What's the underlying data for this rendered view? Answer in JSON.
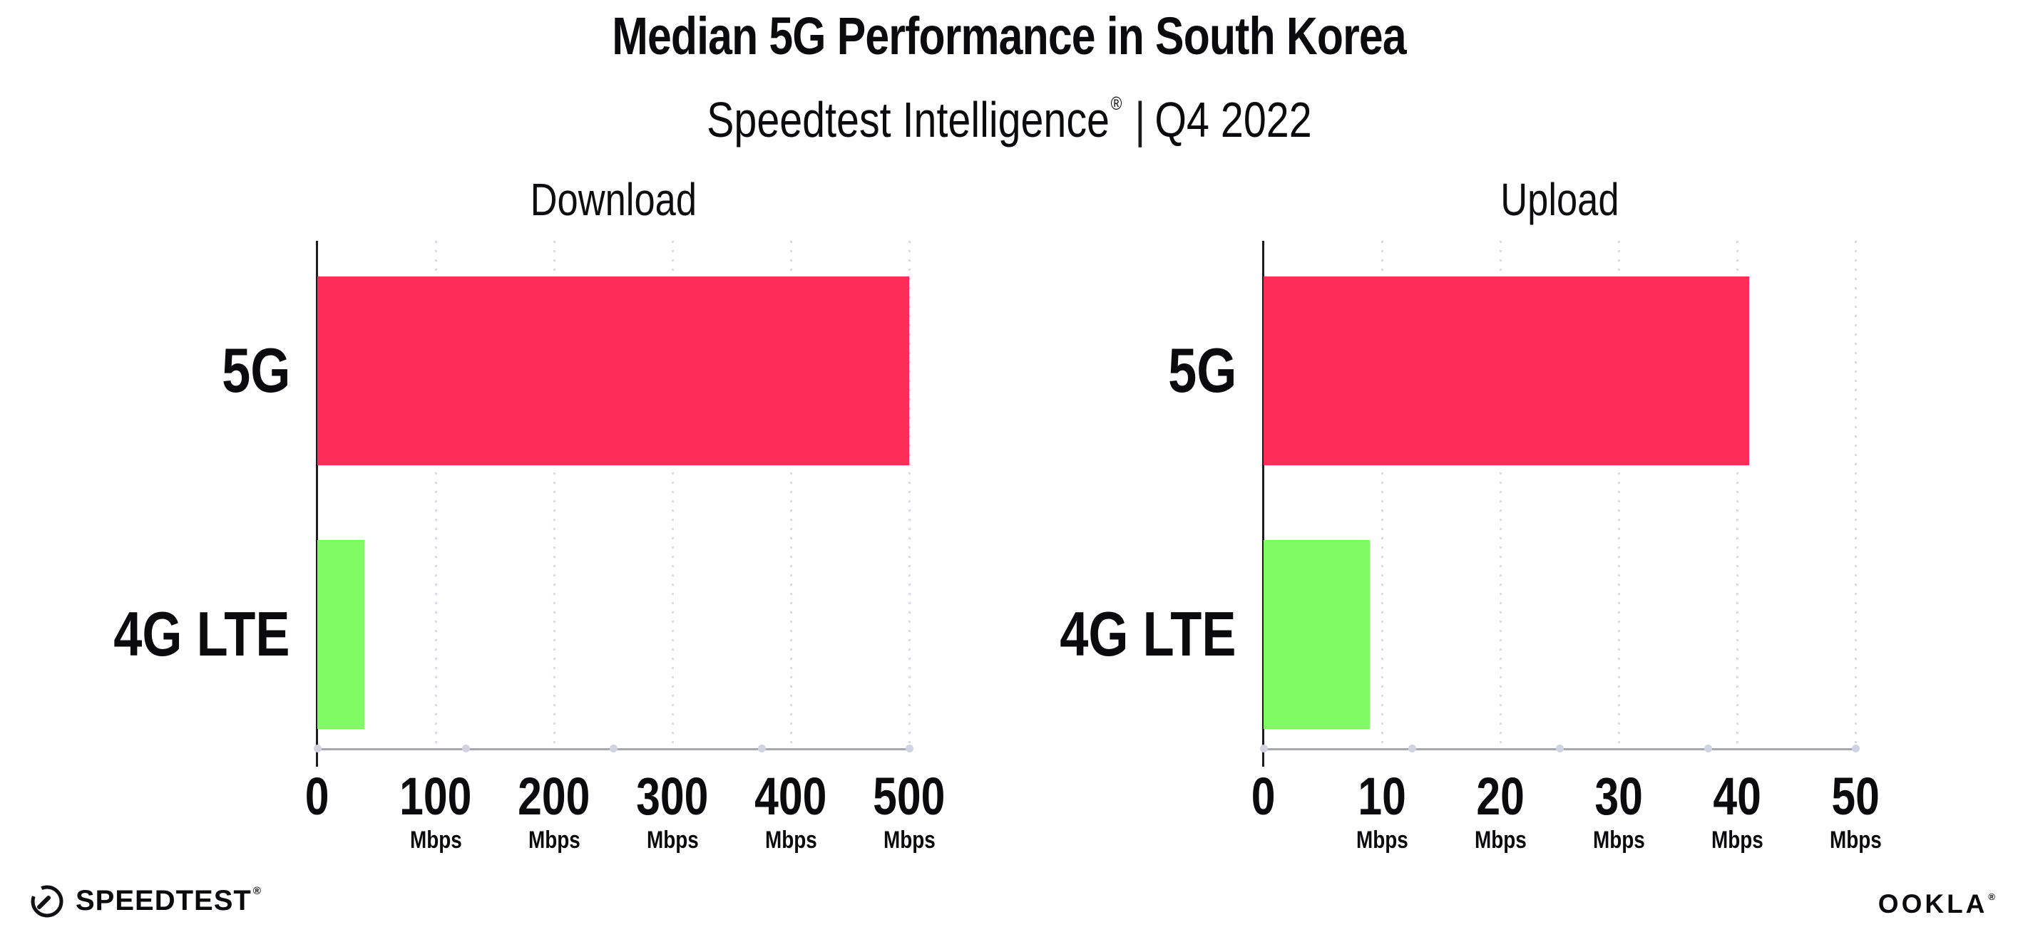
{
  "header": {
    "title": "Median 5G Performance in South Korea",
    "subtitle": {
      "brand": "Speedtest Intelligence",
      "registered": "®",
      "separator": "|",
      "period": "Q4 2022"
    }
  },
  "chart_data": [
    {
      "type": "bar",
      "orientation": "horizontal",
      "title": "Download",
      "categories": [
        "5G",
        "4G LTE"
      ],
      "values": [
        500,
        40
      ],
      "value_unit": "Mbps",
      "xlim": [
        0,
        500
      ],
      "xticks": [
        0,
        100,
        200,
        300,
        400,
        500
      ],
      "tick_unit": "Mbps",
      "bar_colors": [
        "#fc2e58",
        "#80fb63"
      ],
      "grid": "vertical-dotted",
      "legend": false
    },
    {
      "type": "bar",
      "orientation": "horizontal",
      "title": "Upload",
      "categories": [
        "5G",
        "4G LTE"
      ],
      "values": [
        41,
        9
      ],
      "value_unit": "Mbps",
      "xlim": [
        0,
        50
      ],
      "xticks": [
        0,
        10,
        20,
        30,
        40,
        50
      ],
      "tick_unit": "Mbps",
      "bar_colors": [
        "#fc2e58",
        "#80fb63"
      ],
      "grid": "vertical-dotted",
      "legend": false
    }
  ],
  "footer": {
    "speedtest_wordmark": "SPEEDTEST",
    "speedtest_mark": "®",
    "ookla_wordmark": "OOKLA",
    "ookla_mark": "®"
  },
  "style_colors": {
    "bar_5g": "#fc2e58",
    "bar_4g_lte": "#80fb63",
    "gridline": "#d9dce8",
    "axis_line": "#a7a7af",
    "category_axis_line": "#1c1c20",
    "text": "#0b0b0d",
    "background": "#ffffff"
  }
}
